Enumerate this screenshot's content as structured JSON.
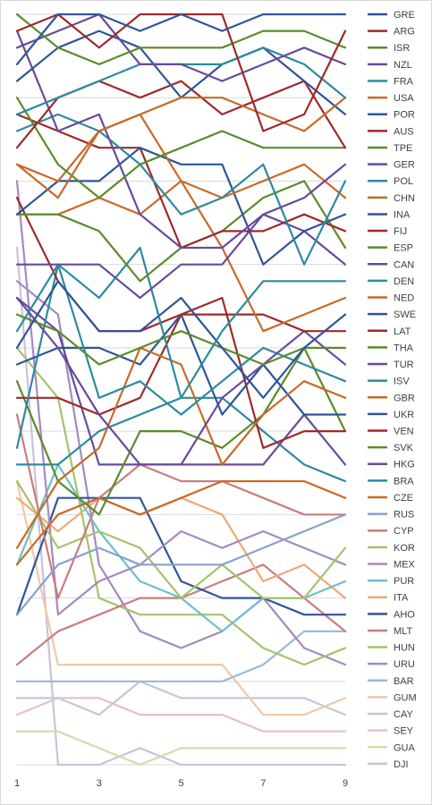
{
  "chart_data": {
    "type": "line",
    "title": "",
    "xlabel": "",
    "ylabel": "",
    "x": [
      1,
      2,
      3,
      4,
      5,
      6,
      7,
      8,
      9
    ],
    "x_tick_labels": [
      "1",
      "3",
      "5",
      "7",
      "9"
    ],
    "x_ticks": [
      1,
      3,
      5,
      7,
      9
    ],
    "y_inverted": true,
    "y_range": [
      1,
      46
    ],
    "grid": "horizontal",
    "legend_position": "right",
    "series": [
      {
        "name": "GRE",
        "color": "#2f5597",
        "values": [
          4,
          1,
          1,
          2,
          1,
          2,
          1,
          1,
          1
        ]
      },
      {
        "name": "ARG",
        "color": "#9e2a2a",
        "values": [
          2,
          1,
          3,
          1,
          1,
          1,
          8,
          7,
          2
        ]
      },
      {
        "name": "ISR",
        "color": "#5b8c2a",
        "values": [
          1,
          3,
          4,
          3,
          3,
          3,
          2,
          2,
          3
        ]
      },
      {
        "name": "NZL",
        "color": "#6a4a9a",
        "values": [
          3,
          2,
          1,
          4,
          4,
          5,
          4,
          3,
          4
        ]
      },
      {
        "name": "FRA",
        "color": "#2c8aa0",
        "values": [
          7,
          6,
          5,
          4,
          4,
          4,
          3,
          4,
          6
        ]
      },
      {
        "name": "USA",
        "color": "#c86a28",
        "values": [
          10,
          12,
          8,
          7,
          6,
          6,
          7,
          8,
          6
        ]
      },
      {
        "name": "POR",
        "color": "#2f5597",
        "values": [
          5,
          3,
          2,
          3,
          6,
          4,
          3,
          5,
          7
        ]
      },
      {
        "name": "AUS",
        "color": "#9e2a2a",
        "values": [
          9,
          6,
          5,
          6,
          5,
          7,
          6,
          5,
          9
        ]
      },
      {
        "name": "TPE",
        "color": "#5b8c2a",
        "values": [
          6,
          10,
          12,
          10,
          9,
          8,
          9,
          9,
          9
        ]
      },
      {
        "name": "GER",
        "color": "#6a4a9a",
        "values": [
          2,
          8,
          7,
          13,
          15,
          15,
          13,
          12,
          10
        ]
      },
      {
        "name": "POL",
        "color": "#2c8aa0",
        "values": [
          8,
          7,
          8,
          10,
          13,
          12,
          10,
          16,
          11
        ]
      },
      {
        "name": "CHN",
        "color": "#c86a28",
        "values": [
          10,
          11,
          8,
          7,
          11,
          12,
          11,
          10,
          12
        ]
      },
      {
        "name": "INA",
        "color": "#2f5597",
        "values": [
          13,
          11,
          11,
          9,
          10,
          10,
          16,
          14,
          13
        ]
      },
      {
        "name": "FIJ",
        "color": "#9e2a2a",
        "values": [
          7,
          8,
          9,
          9,
          15,
          14,
          14,
          13,
          14
        ]
      },
      {
        "name": "ESP",
        "color": "#5b8c2a",
        "values": [
          13,
          13,
          14,
          17,
          15,
          14,
          12,
          11,
          15
        ]
      },
      {
        "name": "CAN",
        "color": "#6a4a9a",
        "values": [
          16,
          16,
          16,
          18,
          16,
          16,
          13,
          14,
          16
        ]
      },
      {
        "name": "DEN",
        "color": "#2c8aa0",
        "values": [
          20,
          16,
          18,
          15,
          24,
          20,
          17,
          17,
          17
        ]
      },
      {
        "name": "NED",
        "color": "#c86a28",
        "values": [
          13,
          13,
          12,
          13,
          11,
          15,
          20,
          19,
          18
        ]
      },
      {
        "name": "SWE",
        "color": "#2f5597",
        "values": [
          21,
          17,
          20,
          20,
          18,
          21,
          24,
          21,
          19
        ]
      },
      {
        "name": "LAT",
        "color": "#9e2a2a",
        "values": [
          12,
          17,
          20,
          20,
          19,
          19,
          19,
          20,
          20
        ]
      },
      {
        "name": "THA",
        "color": "#5b8c2a",
        "values": [
          19,
          20,
          22,
          21,
          20,
          21,
          22,
          21,
          21
        ]
      },
      {
        "name": "TUR",
        "color": "#6a4a9a",
        "values": [
          18,
          21,
          25,
          28,
          28,
          24,
          22,
          20,
          22
        ]
      },
      {
        "name": "ISV",
        "color": "#2c8aa0",
        "values": [
          27,
          16,
          24,
          23,
          25,
          23,
          21,
          22,
          23
        ]
      },
      {
        "name": "GBR",
        "color": "#c86a28",
        "values": [
          33,
          29,
          27,
          21,
          22,
          28,
          25,
          23,
          24
        ]
      },
      {
        "name": "UKR",
        "color": "#2f5597",
        "values": [
          22,
          21,
          21,
          22,
          19,
          25,
          22,
          25,
          25
        ]
      },
      {
        "name": "VEN",
        "color": "#9e2a2a",
        "values": [
          24,
          24,
          25,
          24,
          19,
          18,
          27,
          26,
          26
        ]
      },
      {
        "name": "SVK",
        "color": "#5b8c2a",
        "values": [
          23,
          29,
          31,
          26,
          26,
          27,
          25,
          21,
          26
        ]
      },
      {
        "name": "HKG",
        "color": "#6a4a9a",
        "values": [
          18,
          20,
          28,
          28,
          28,
          28,
          28,
          25,
          28
        ]
      },
      {
        "name": "BRA",
        "color": "#2c8aa0",
        "values": [
          28,
          28,
          26,
          25,
          24,
          24,
          26,
          28,
          29
        ]
      },
      {
        "name": "CZE",
        "color": "#c86a28",
        "values": [
          34,
          31,
          30,
          31,
          30,
          29,
          29,
          29,
          30
        ]
      },
      {
        "name": "RUS",
        "color": "#8aa0cc",
        "values": [
          37,
          34,
          33,
          34,
          34,
          34,
          33,
          32,
          31
        ]
      },
      {
        "name": "CYP",
        "color": "#c87d7d",
        "values": [
          25,
          36,
          30,
          28,
          29,
          29,
          30,
          31,
          31
        ]
      },
      {
        "name": "KOR",
        "color": "#a3c46a",
        "values": [
          29,
          33,
          32,
          33,
          36,
          34,
          36,
          36,
          33
        ]
      },
      {
        "name": "MEX",
        "color": "#a58ac0",
        "values": [
          11,
          37,
          35,
          34,
          32,
          33,
          32,
          33,
          34
        ]
      },
      {
        "name": "PUR",
        "color": "#6cc0cc",
        "values": [
          34,
          28,
          32,
          35,
          36,
          38,
          36,
          36,
          35
        ]
      },
      {
        "name": "ITA",
        "color": "#f0a878",
        "values": [
          30,
          32,
          30,
          31,
          30,
          31,
          35,
          34,
          36
        ]
      },
      {
        "name": "AHO",
        "color": "#2f5597",
        "values": [
          37,
          30,
          30,
          30,
          35,
          36,
          36,
          37,
          37
        ]
      },
      {
        "name": "MLT",
        "color": "#c87d7d",
        "values": [
          40,
          38,
          37,
          36,
          36,
          35,
          34,
          36,
          38
        ]
      },
      {
        "name": "HUN",
        "color": "#a3c46a",
        "values": [
          21,
          24,
          36,
          37,
          37,
          37,
          39,
          40,
          39
        ]
      },
      {
        "name": "URU",
        "color": "#a58ac0",
        "values": [
          17,
          19,
          34,
          38,
          39,
          38,
          36,
          39,
          40
        ]
      },
      {
        "name": "BAR",
        "color": "#9ab8d8",
        "values": [
          41,
          41,
          41,
          41,
          41,
          41,
          40,
          38,
          38
        ]
      },
      {
        "name": "GUM",
        "color": "#f0c8a8",
        "values": [
          29,
          40,
          40,
          40,
          40,
          40,
          43,
          43,
          42
        ]
      },
      {
        "name": "CAY",
        "color": "#c0c8e0",
        "values": [
          42,
          42,
          43,
          41,
          42,
          42,
          42,
          42,
          43
        ]
      },
      {
        "name": "SEY",
        "color": "#e8c0c0",
        "values": [
          43,
          42,
          42,
          43,
          43,
          43,
          44,
          44,
          44
        ]
      },
      {
        "name": "GUA",
        "color": "#cce0a8",
        "values": [
          44,
          44,
          45,
          46,
          45,
          45,
          45,
          45,
          45
        ]
      },
      {
        "name": "DJI",
        "color": "#cdc0dc",
        "values": [
          15,
          46,
          46,
          45,
          46,
          46,
          46,
          46,
          46
        ]
      }
    ]
  }
}
